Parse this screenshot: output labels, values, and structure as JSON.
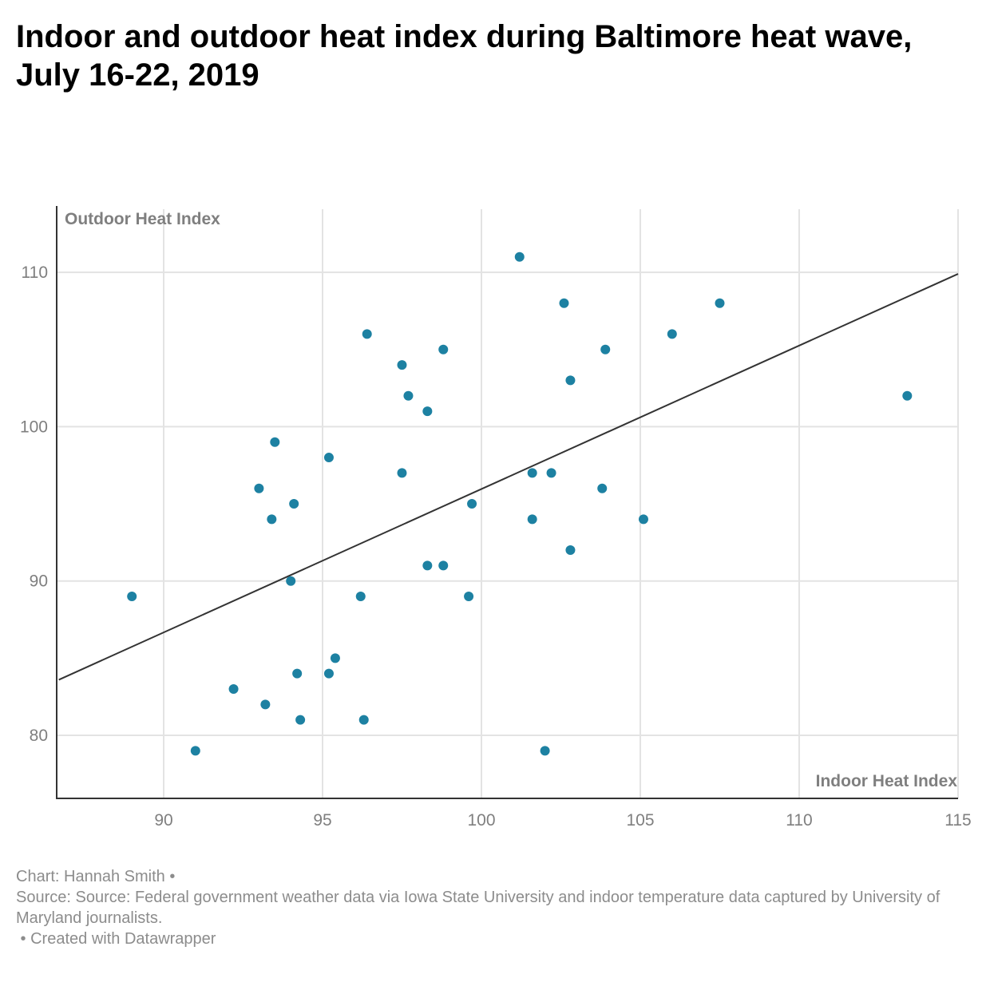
{
  "chart_data": {
    "type": "scatter",
    "title": "Indoor and outdoor heat index during Baltimore heat wave, July 16-22, 2019",
    "xlabel": "Indoor Heat Index",
    "ylabel": "Outdoor Heat Index",
    "xlim": [
      86.6,
      115
    ],
    "ylim": [
      76,
      114
    ],
    "xticks": [
      "90",
      "95",
      "100",
      "105",
      "110",
      "115"
    ],
    "yticks": [
      "80",
      "90",
      "100",
      "110"
    ],
    "grid": true,
    "point_color": "#1d81a2",
    "trend_line_color": "#333333",
    "trend_line": {
      "x": [
        86.7,
        115
      ],
      "y": [
        83.6,
        109.9
      ]
    },
    "points": [
      {
        "x": 89.0,
        "y": 89
      },
      {
        "x": 91.0,
        "y": 79
      },
      {
        "x": 92.2,
        "y": 83
      },
      {
        "x": 93.0,
        "y": 96
      },
      {
        "x": 93.2,
        "y": 82
      },
      {
        "x": 93.4,
        "y": 94
      },
      {
        "x": 93.5,
        "y": 99
      },
      {
        "x": 94.0,
        "y": 90
      },
      {
        "x": 94.1,
        "y": 95
      },
      {
        "x": 94.2,
        "y": 84
      },
      {
        "x": 94.3,
        "y": 81
      },
      {
        "x": 95.2,
        "y": 98
      },
      {
        "x": 95.2,
        "y": 84
      },
      {
        "x": 95.4,
        "y": 85
      },
      {
        "x": 96.2,
        "y": 89
      },
      {
        "x": 96.3,
        "y": 81
      },
      {
        "x": 96.4,
        "y": 106
      },
      {
        "x": 97.5,
        "y": 104
      },
      {
        "x": 97.5,
        "y": 97
      },
      {
        "x": 97.7,
        "y": 102
      },
      {
        "x": 98.3,
        "y": 101
      },
      {
        "x": 98.3,
        "y": 91
      },
      {
        "x": 98.8,
        "y": 105
      },
      {
        "x": 98.8,
        "y": 91
      },
      {
        "x": 99.6,
        "y": 89
      },
      {
        "x": 99.7,
        "y": 95
      },
      {
        "x": 101.2,
        "y": 111
      },
      {
        "x": 101.6,
        "y": 97
      },
      {
        "x": 101.6,
        "y": 94
      },
      {
        "x": 102.0,
        "y": 79
      },
      {
        "x": 102.2,
        "y": 97
      },
      {
        "x": 102.6,
        "y": 108
      },
      {
        "x": 102.8,
        "y": 103
      },
      {
        "x": 102.8,
        "y": 92
      },
      {
        "x": 103.8,
        "y": 96
      },
      {
        "x": 103.9,
        "y": 105
      },
      {
        "x": 105.1,
        "y": 94
      },
      {
        "x": 106.0,
        "y": 106
      },
      {
        "x": 107.5,
        "y": 108
      },
      {
        "x": 113.4,
        "y": 102
      }
    ]
  },
  "footer": {
    "credit": "Chart: Hannah Smith •",
    "source": "Source: Source: Federal government weather data via Iowa State University and indoor temperature data captured by University of Maryland journalists.",
    "created": " • Created with Datawrapper"
  }
}
